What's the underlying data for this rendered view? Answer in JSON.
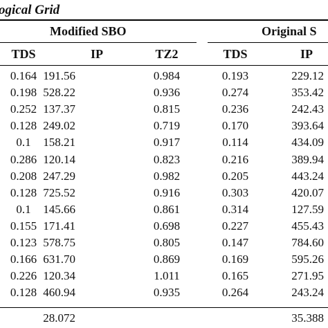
{
  "caption": "ogical Grid",
  "groups": {
    "modified": "Modified SBO",
    "original": "Original S"
  },
  "headers": [
    "TDS",
    "IP",
    "TZ2",
    "TDS",
    "IP"
  ],
  "rows": [
    [
      "0.164",
      "191.56",
      "0.984",
      "0.193",
      "229.12"
    ],
    [
      "0.198",
      "528.22",
      "0.936",
      "0.274",
      "353.42"
    ],
    [
      "0.252",
      "137.37",
      "0.815",
      "0.236",
      "242.43"
    ],
    [
      "0.128",
      "249.02",
      "0.719",
      "0.170",
      "393.64"
    ],
    [
      "0.1",
      "158.21",
      "0.917",
      "0.114",
      "434.09"
    ],
    [
      "0.286",
      "120.14",
      "0.823",
      "0.216",
      "389.94"
    ],
    [
      "0.208",
      "247.29",
      "0.982",
      "0.205",
      "443.24"
    ],
    [
      "0.128",
      "725.52",
      "0.916",
      "0.303",
      "420.07"
    ],
    [
      "0.1",
      "145.66",
      "0.861",
      "0.314",
      "127.59"
    ],
    [
      "0.155",
      "171.41",
      "0.698",
      "0.227",
      "455.43"
    ],
    [
      "0.123",
      "578.75",
      "0.805",
      "0.147",
      "784.60"
    ],
    [
      "0.166",
      "631.70",
      "0.869",
      "0.169",
      "595.26"
    ],
    [
      "0.226",
      "120.34",
      "1.011",
      "0.165",
      "271.95"
    ],
    [
      "0.128",
      "460.94",
      "0.935",
      "0.264",
      "243.24"
    ]
  ],
  "summary": [
    "",
    "28.072",
    "",
    "",
    "35.388"
  ]
}
